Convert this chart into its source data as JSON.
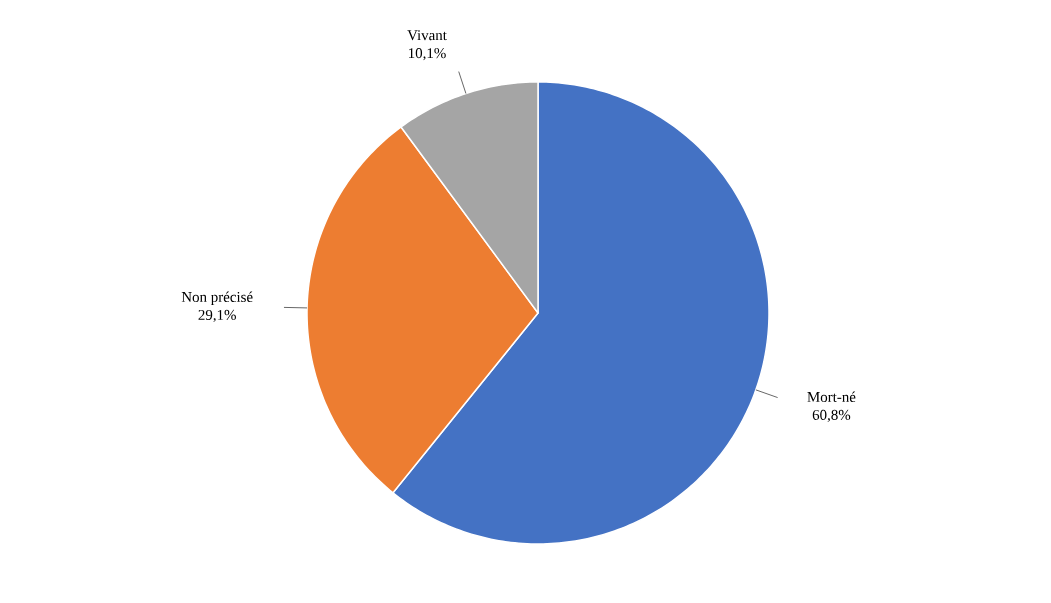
{
  "chart_data": {
    "type": "pie",
    "categories": [
      "Mort-né",
      "Non précisé",
      "Vivant"
    ],
    "values": [
      60.8,
      29.1,
      10.1
    ],
    "value_labels": [
      "60,8%",
      "29,1%",
      "10,1%"
    ],
    "colors": [
      "#4472c4",
      "#ed7d31",
      "#a5a5a5"
    ]
  }
}
